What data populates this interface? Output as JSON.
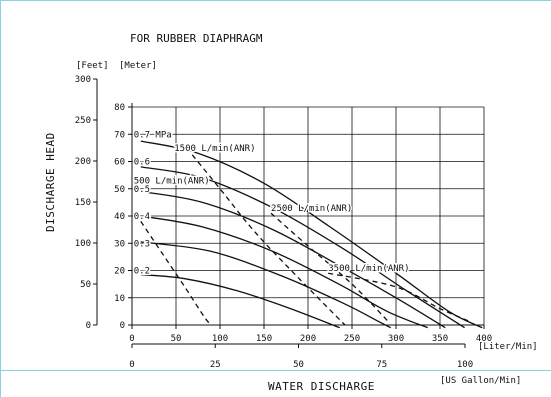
{
  "chart_data": {
    "type": "line",
    "title": "FOR RUBBER DIAPHRAGM",
    "ylabel": "DISCHARGE HEAD",
    "xlabel": "WATER DISCHARGE",
    "y_unit_feet": "[Feet]",
    "y_unit_meter": "[Meter]",
    "x_unit_liter": "[Liter/Min]",
    "x_unit_gallon": "[US Gallon/Min]",
    "xlim_liter": [
      0,
      400
    ],
    "ylim_meter": [
      0,
      80
    ],
    "grid": true,
    "y_ticks_feet": [
      {
        "value": 0,
        "label": "0"
      },
      {
        "value": 50,
        "label": "50"
      },
      {
        "value": 100,
        "label": "100"
      },
      {
        "value": 150,
        "label": "150"
      },
      {
        "value": 200,
        "label": "200"
      },
      {
        "value": 250,
        "label": "250"
      },
      {
        "value": 300,
        "label": "300"
      }
    ],
    "y_ticks_meter": [
      {
        "value": 0,
        "label": "0"
      },
      {
        "value": 10,
        "label": "10"
      },
      {
        "value": 20,
        "label": "20"
      },
      {
        "value": 30,
        "label": "30"
      },
      {
        "value": 40,
        "label": "40"
      },
      {
        "value": 50,
        "label": "50"
      },
      {
        "value": 60,
        "label": "60"
      },
      {
        "value": 70,
        "label": "70"
      },
      {
        "value": 80,
        "label": "80"
      }
    ],
    "x_ticks_liter": [
      {
        "value": 0,
        "label": "0"
      },
      {
        "value": 50,
        "label": "50"
      },
      {
        "value": 100,
        "label": "100"
      },
      {
        "value": 150,
        "label": "150"
      },
      {
        "value": 200,
        "label": "200"
      },
      {
        "value": 250,
        "label": "250"
      },
      {
        "value": 300,
        "label": "300"
      },
      {
        "value": 350,
        "label": "350"
      },
      {
        "value": 400,
        "label": "400"
      }
    ],
    "x_ticks_gallon": [
      {
        "value": 0,
        "label": "0"
      },
      {
        "value": 25,
        "label": "25"
      },
      {
        "value": 50,
        "label": "50"
      },
      {
        "value": 75,
        "label": "75"
      },
      {
        "value": 100,
        "label": "100"
      }
    ],
    "series": [
      {
        "name": "0.7 MPa",
        "label_at": [
          2,
          70
        ],
        "points": [
          [
            10,
            67.5
          ],
          [
            75,
            63
          ],
          [
            150,
            52
          ],
          [
            225,
            36
          ],
          [
            300,
            19
          ],
          [
            360,
            5
          ],
          [
            398,
            -1
          ]
        ]
      },
      {
        "name": "0.6",
        "label_at": [
          2,
          60
        ],
        "points": [
          [
            10,
            58
          ],
          [
            80,
            54
          ],
          [
            160,
            43
          ],
          [
            240,
            28
          ],
          [
            310,
            13
          ],
          [
            378,
            -1
          ]
        ]
      },
      {
        "name": "0.5",
        "label_at": [
          2,
          50
        ],
        "points": [
          [
            10,
            49
          ],
          [
            80,
            45
          ],
          [
            160,
            35
          ],
          [
            240,
            21
          ],
          [
            300,
            10
          ],
          [
            356,
            -1
          ]
        ]
      },
      {
        "name": "0.4",
        "label_at": [
          2,
          40
        ],
        "points": [
          [
            10,
            40
          ],
          [
            80,
            36
          ],
          [
            160,
            27
          ],
          [
            235,
            15
          ],
          [
            290,
            5
          ],
          [
            336,
            -1
          ]
        ]
      },
      {
        "name": "0.3",
        "label_at": [
          2,
          30
        ],
        "points": [
          [
            10,
            30.5
          ],
          [
            90,
            27
          ],
          [
            170,
            18
          ],
          [
            240,
            8
          ],
          [
            282,
            1
          ],
          [
            294,
            -1
          ]
        ]
      },
      {
        "name": "0.2",
        "label_at": [
          2,
          20
        ],
        "points": [
          [
            10,
            18.5
          ],
          [
            60,
            17
          ],
          [
            120,
            12.5
          ],
          [
            180,
            6
          ],
          [
            236,
            -1
          ]
        ]
      }
    ],
    "air_consumption_lines": [
      {
        "name": "500 L/min(ANR)",
        "label_at": [
          2,
          53
        ],
        "points": [
          [
            10,
            38
          ],
          [
            35,
            26
          ],
          [
            60,
            14
          ],
          [
            82,
            3
          ],
          [
            90,
            0
          ]
        ]
      },
      {
        "name": "1500 L/min(ANR)",
        "label_at": [
          48,
          65
        ],
        "points": [
          [
            62,
            65
          ],
          [
            100,
            50
          ],
          [
            140,
            34
          ],
          [
            190,
            17
          ],
          [
            242,
            0
          ]
        ]
      },
      {
        "name": "2500 L/min(ANR)",
        "label_at": [
          158,
          43
        ],
        "points": [
          [
            158,
            41
          ],
          [
            200,
            29
          ],
          [
            250,
            15
          ],
          [
            292,
            1
          ]
        ]
      },
      {
        "name": "3500 L/min(ANR)",
        "label_at": [
          223,
          21
        ],
        "points": [
          [
            223,
            19
          ],
          [
            300,
            14
          ],
          [
            350,
            6
          ],
          [
            386,
            1
          ]
        ]
      }
    ]
  }
}
